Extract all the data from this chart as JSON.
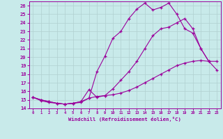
{
  "xlabel": "Windchill (Refroidissement éolien,°C)",
  "bg_color": "#c8eaea",
  "line_color": "#9b009b",
  "grid_color": "#b0d0d0",
  "xlim": [
    -0.5,
    23.5
  ],
  "ylim": [
    14,
    26.5
  ],
  "yticks": [
    14,
    15,
    16,
    17,
    18,
    19,
    20,
    21,
    22,
    23,
    24,
    25,
    26
  ],
  "xticks": [
    0,
    1,
    2,
    3,
    4,
    5,
    6,
    7,
    8,
    9,
    10,
    11,
    12,
    13,
    14,
    15,
    16,
    17,
    18,
    19,
    20,
    21,
    22,
    23
  ],
  "line1_x": [
    0,
    1,
    2,
    3,
    4,
    5,
    6,
    7,
    8,
    9,
    10,
    11,
    12,
    13,
    14,
    15,
    16,
    17,
    18,
    19,
    20,
    21,
    22
  ],
  "line1_y": [
    15.3,
    14.9,
    14.7,
    14.6,
    14.5,
    14.6,
    14.7,
    15.2,
    18.3,
    20.1,
    22.2,
    23.0,
    24.5,
    25.6,
    26.3,
    25.5,
    25.8,
    26.3,
    25.0,
    23.3,
    22.8,
    21.0,
    19.5
  ],
  "line2_x": [
    0,
    1,
    2,
    3,
    4,
    5,
    6,
    7,
    8,
    9,
    10,
    11,
    12,
    13,
    14,
    15,
    16,
    17,
    18,
    19,
    20,
    21,
    22,
    23
  ],
  "line2_y": [
    15.3,
    15.0,
    14.8,
    14.6,
    14.5,
    14.6,
    14.8,
    15.2,
    15.4,
    15.5,
    15.6,
    15.8,
    16.1,
    16.5,
    17.0,
    17.5,
    18.0,
    18.5,
    19.0,
    19.3,
    19.5,
    19.6,
    19.5,
    19.5
  ],
  "line3_x": [
    0,
    1,
    2,
    3,
    4,
    5,
    6,
    7,
    8,
    9,
    10,
    11,
    12,
    13,
    14,
    15,
    16,
    17,
    18,
    19,
    20,
    21,
    22,
    23
  ],
  "line3_y": [
    15.3,
    15.0,
    14.8,
    14.6,
    14.5,
    14.6,
    14.8,
    16.2,
    15.3,
    15.5,
    16.3,
    17.3,
    18.3,
    19.5,
    21.0,
    22.5,
    23.3,
    23.5,
    24.0,
    24.5,
    23.3,
    21.0,
    19.5,
    18.5
  ]
}
